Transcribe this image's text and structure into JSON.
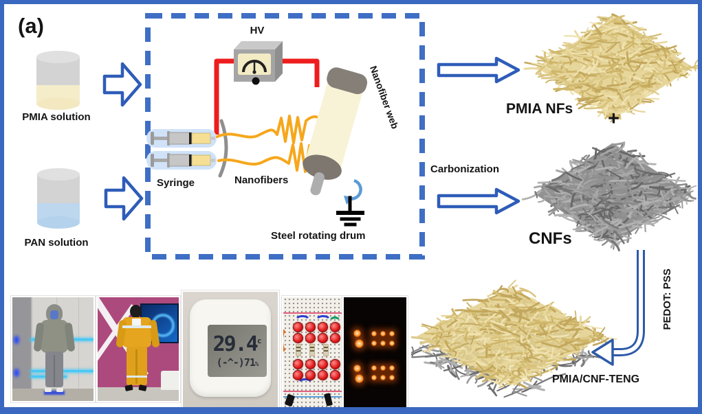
{
  "panel_label": "(a)",
  "inputs": {
    "pmia": {
      "label": "PMIA solution"
    },
    "pan": {
      "label": "PAN solution"
    }
  },
  "electrospinning": {
    "hv_label": "HV",
    "syringe_label": "Syringe",
    "nanofibers_label": "Nanofibers",
    "nanofiber_web_label": "Nanofiber web",
    "drum_label": "Steel rotating drum"
  },
  "outputs": {
    "pmia_nfs_label": "PMIA NFs",
    "plus_sign": "+",
    "carbonization_label": "Carbonization",
    "cnfs_label": "CNFs",
    "pedot_label": "PEDOT: PSS",
    "teng_label": "PMIA/CNF-TENG"
  },
  "thermometer": {
    "temperature": "29.4",
    "temp_unit": "c",
    "face": "(-^-)",
    "humidity": "71",
    "humidity_unit": "%"
  },
  "icons": {
    "flow_arrow": "block-arrow-right",
    "rotation_arrow": "curved-rotation-arrow",
    "ground_symbol": "earth-ground",
    "pedot_arrow": "curved-pipe-arrow-left"
  },
  "colors": {
    "border_blue": "#3a67bf",
    "dashed_blue": "#3f6ec5",
    "arrow_blue": "#2e5cb8",
    "wire_red": "#ee1d1d",
    "fiber_yellow": "#f6a71c",
    "rotation_blue": "#5b9bd5",
    "pmia_solution_fill": "#f5ecca",
    "pan_solution_fill": "#bcd7ee",
    "cylinder_gray": "#d9d9d9",
    "drum_body": "#f8f3d6",
    "drum_cap": "#857f78",
    "mat_pmia_base": "#e3d08f",
    "mat_pmia_strokes": [
      "#d9c27a",
      "#cfb66a",
      "#e9d89e",
      "#c2a75c",
      "#f0e3b2",
      "#dcc988"
    ],
    "mat_cnf_base": "#868686",
    "mat_cnf_strokes": [
      "#9a9a9a",
      "#767676",
      "#a8a8a8",
      "#676767",
      "#8d8d8d",
      "#b2b2b2"
    ],
    "mat_teng_gray_strokes": [
      "#9a9a9a",
      "#7a7a7a",
      "#b0b0b0",
      "#6c6c6c"
    ]
  }
}
